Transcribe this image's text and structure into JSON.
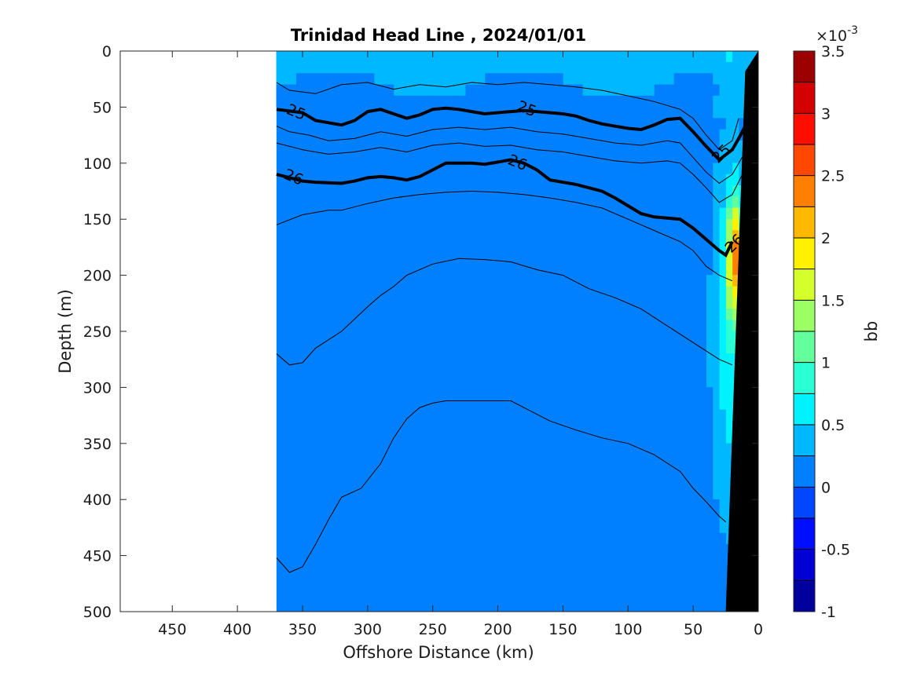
{
  "chart_data": {
    "type": "heatmap",
    "title": "Trinidad Head Line , 2024/01/01",
    "xlabel": "Offshore Distance (km)",
    "ylabel": "Depth (m)",
    "xlim": [
      490,
      0
    ],
    "ylim": [
      500,
      0
    ],
    "x_reversed": true,
    "y_reversed": true,
    "x_ticks": [
      450,
      400,
      350,
      300,
      250,
      200,
      150,
      100,
      50,
      0
    ],
    "y_ticks": [
      0,
      50,
      100,
      150,
      200,
      250,
      300,
      350,
      400,
      450,
      500
    ],
    "data_extent_x": [
      370,
      0
    ],
    "colorbar": {
      "label": "bb",
      "exponent": "×10",
      "exponent_power": "-3",
      "range": [
        -1,
        3.5
      ],
      "ticks": [
        "3.5",
        "3",
        "2.5",
        "2",
        "1.5",
        "1",
        "0.5",
        "0",
        "-0.5",
        "-1"
      ],
      "tick_values": [
        3.5,
        3,
        2.5,
        2,
        1.5,
        1,
        0.5,
        0,
        -0.5,
        -1
      ],
      "levels": 18,
      "colormap": "jet"
    },
    "background_value": 0.1,
    "features": [
      {
        "name": "surface layer",
        "x_range": [
          370,
          20
        ],
        "depth_range": [
          0,
          60
        ],
        "value": 0.35
      },
      {
        "name": "nearshore maximum",
        "x": 20,
        "depth": 190,
        "value": 1.9
      },
      {
        "name": "nearshore band",
        "x_range": [
          40,
          10
        ],
        "depth_range": [
          100,
          480
        ],
        "value": 0.5
      }
    ],
    "density_contours": [
      {
        "label": "25",
        "bold": true,
        "points": [
          [
            370,
            52
          ],
          [
            350,
            55
          ],
          [
            340,
            62
          ],
          [
            320,
            66
          ],
          [
            310,
            62
          ],
          [
            300,
            54
          ],
          [
            290,
            52
          ],
          [
            280,
            56
          ],
          [
            270,
            60
          ],
          [
            260,
            57
          ],
          [
            250,
            52
          ],
          [
            240,
            51
          ],
          [
            230,
            52
          ],
          [
            220,
            54
          ],
          [
            210,
            56
          ],
          [
            200,
            55
          ],
          [
            190,
            54
          ],
          [
            180,
            53
          ],
          [
            170,
            54
          ],
          [
            150,
            56
          ],
          [
            140,
            58
          ],
          [
            130,
            62
          ],
          [
            120,
            65
          ],
          [
            110,
            67
          ],
          [
            100,
            69
          ],
          [
            90,
            70
          ],
          [
            80,
            66
          ],
          [
            70,
            61
          ],
          [
            60,
            60
          ],
          [
            50,
            72
          ],
          [
            40,
            85
          ],
          [
            30,
            97
          ],
          [
            20,
            88
          ],
          [
            15,
            78
          ],
          [
            10,
            67
          ]
        ]
      },
      {
        "label": "26",
        "bold": true,
        "points": [
          [
            370,
            110
          ],
          [
            350,
            116
          ],
          [
            340,
            117
          ],
          [
            320,
            118
          ],
          [
            310,
            116
          ],
          [
            300,
            113
          ],
          [
            290,
            112
          ],
          [
            280,
            113
          ],
          [
            270,
            115
          ],
          [
            260,
            112
          ],
          [
            250,
            106
          ],
          [
            240,
            100
          ],
          [
            220,
            100
          ],
          [
            210,
            101
          ],
          [
            200,
            99
          ],
          [
            190,
            97
          ],
          [
            180,
            100
          ],
          [
            170,
            106
          ],
          [
            160,
            115
          ],
          [
            140,
            119
          ],
          [
            120,
            125
          ],
          [
            110,
            131
          ],
          [
            100,
            138
          ],
          [
            90,
            145
          ],
          [
            80,
            148
          ],
          [
            60,
            150
          ],
          [
            50,
            158
          ],
          [
            40,
            168
          ],
          [
            30,
            178
          ],
          [
            25,
            182
          ],
          [
            20,
            170
          ]
        ]
      },
      {
        "label": "",
        "bold": false,
        "points": [
          [
            370,
            67
          ],
          [
            360,
            72
          ],
          [
            345,
            75
          ],
          [
            330,
            80
          ],
          [
            310,
            78
          ],
          [
            290,
            72
          ],
          [
            270,
            76
          ],
          [
            250,
            70
          ],
          [
            230,
            68
          ],
          [
            210,
            70
          ],
          [
            190,
            68
          ],
          [
            170,
            72
          ],
          [
            150,
            74
          ],
          [
            130,
            78
          ],
          [
            110,
            82
          ],
          [
            90,
            84
          ],
          [
            70,
            80
          ],
          [
            60,
            82
          ],
          [
            50,
            95
          ],
          [
            40,
            108
          ],
          [
            30,
            118
          ],
          [
            20,
            110
          ],
          [
            10,
            90
          ]
        ]
      },
      {
        "label": "",
        "bold": false,
        "points": [
          [
            370,
            82
          ],
          [
            350,
            88
          ],
          [
            330,
            92
          ],
          [
            310,
            90
          ],
          [
            290,
            86
          ],
          [
            270,
            90
          ],
          [
            250,
            84
          ],
          [
            230,
            82
          ],
          [
            210,
            85
          ],
          [
            190,
            84
          ],
          [
            170,
            88
          ],
          [
            150,
            90
          ],
          [
            130,
            94
          ],
          [
            110,
            98
          ],
          [
            90,
            100
          ],
          [
            70,
            98
          ],
          [
            60,
            100
          ],
          [
            50,
            110
          ],
          [
            40,
            122
          ],
          [
            30,
            135
          ],
          [
            20,
            128
          ],
          [
            10,
            105
          ]
        ]
      },
      {
        "label": "",
        "bold": false,
        "points": [
          [
            370,
            155
          ],
          [
            350,
            146
          ],
          [
            330,
            142
          ],
          [
            320,
            142
          ],
          [
            300,
            136
          ],
          [
            280,
            131
          ],
          [
            260,
            128
          ],
          [
            240,
            126
          ],
          [
            220,
            125
          ],
          [
            200,
            126
          ],
          [
            180,
            128
          ],
          [
            160,
            131
          ],
          [
            140,
            135
          ],
          [
            120,
            140
          ],
          [
            100,
            150
          ],
          [
            80,
            160
          ],
          [
            60,
            170
          ],
          [
            50,
            178
          ],
          [
            40,
            192
          ],
          [
            30,
            200
          ],
          [
            20,
            205
          ]
        ]
      },
      {
        "label": "",
        "bold": false,
        "points": [
          [
            370,
            270
          ],
          [
            360,
            280
          ],
          [
            350,
            278
          ],
          [
            340,
            265
          ],
          [
            320,
            250
          ],
          [
            300,
            228
          ],
          [
            290,
            218
          ],
          [
            280,
            210
          ],
          [
            270,
            200
          ],
          [
            250,
            190
          ],
          [
            230,
            185
          ],
          [
            210,
            186
          ],
          [
            190,
            188
          ],
          [
            170,
            195
          ],
          [
            150,
            200
          ],
          [
            130,
            212
          ],
          [
            110,
            220
          ],
          [
            90,
            230
          ],
          [
            70,
            245
          ],
          [
            50,
            260
          ],
          [
            30,
            275
          ],
          [
            20,
            280
          ]
        ]
      },
      {
        "label": "",
        "bold": false,
        "points": [
          [
            370,
            452
          ],
          [
            360,
            465
          ],
          [
            350,
            460
          ],
          [
            340,
            440
          ],
          [
            330,
            418
          ],
          [
            320,
            398
          ],
          [
            305,
            390
          ],
          [
            290,
            368
          ],
          [
            280,
            345
          ],
          [
            270,
            328
          ],
          [
            260,
            318
          ],
          [
            250,
            314
          ],
          [
            240,
            312
          ],
          [
            220,
            312
          ],
          [
            200,
            312
          ],
          [
            190,
            312
          ],
          [
            180,
            318
          ],
          [
            160,
            330
          ],
          [
            140,
            338
          ],
          [
            120,
            345
          ],
          [
            100,
            350
          ],
          [
            80,
            360
          ],
          [
            60,
            375
          ],
          [
            50,
            390
          ],
          [
            40,
            402
          ],
          [
            30,
            415
          ],
          [
            25,
            420
          ]
        ]
      },
      {
        "label": "",
        "bold": false,
        "points": [
          [
            370,
            28
          ],
          [
            360,
            35
          ],
          [
            340,
            38
          ],
          [
            320,
            30
          ],
          [
            300,
            28
          ],
          [
            280,
            34
          ],
          [
            260,
            30
          ],
          [
            240,
            32
          ],
          [
            220,
            28
          ],
          [
            200,
            30
          ],
          [
            180,
            28
          ],
          [
            160,
            30
          ],
          [
            140,
            32
          ],
          [
            120,
            35
          ],
          [
            100,
            40
          ],
          [
            80,
            45
          ],
          [
            60,
            52
          ],
          [
            50,
            60
          ],
          [
            40,
            75
          ],
          [
            30,
            88
          ],
          [
            20,
            80
          ],
          [
            15,
            60
          ]
        ]
      }
    ],
    "bathymetry": {
      "color": "#000000",
      "polygon": [
        [
          25,
          500
        ],
        [
          0,
          500
        ],
        [
          0,
          0
        ],
        [
          10,
          18
        ]
      ]
    }
  }
}
